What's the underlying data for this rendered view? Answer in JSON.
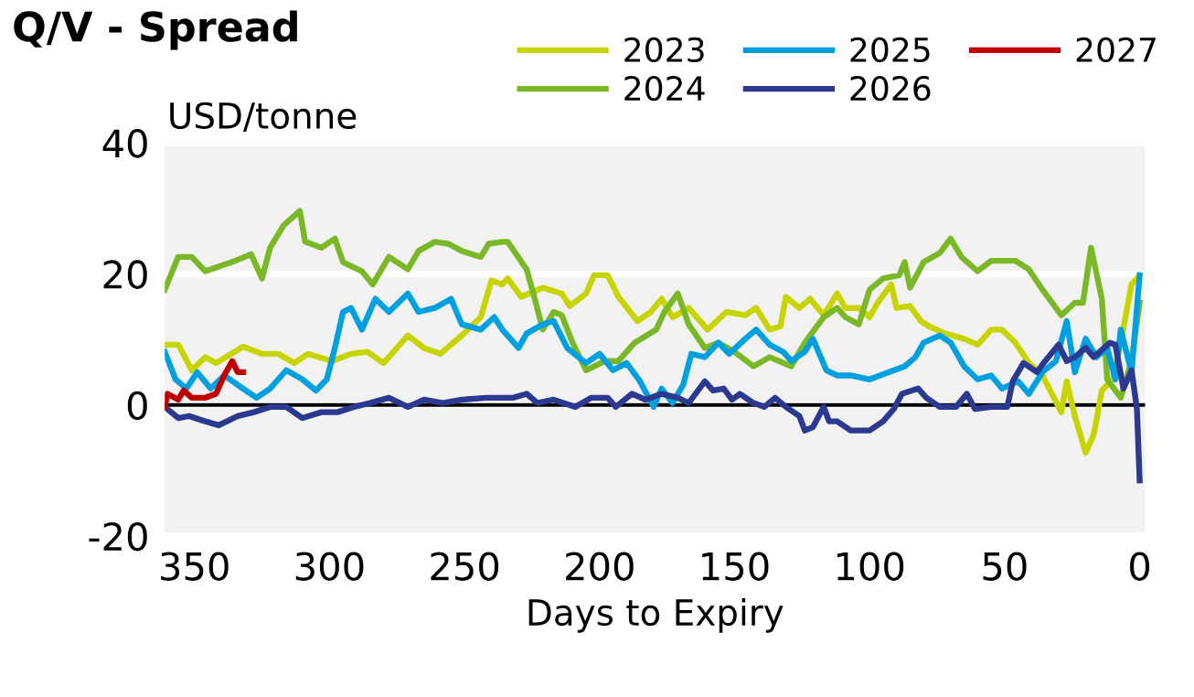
{
  "chart_data": {
    "type": "line",
    "title": "Q/V - Spread",
    "ylabel": "USD/tonne",
    "xlabel": "Days to Expiry",
    "xlim": [
      361,
      -2
    ],
    "xticks": [
      350,
      300,
      250,
      200,
      150,
      100,
      50,
      0
    ],
    "ylim": [
      -20,
      40
    ],
    "yticks": [
      -20,
      0,
      20,
      40
    ],
    "grid": "y",
    "legend": "top",
    "line_style": "solid",
    "marker": "none",
    "ref_lines": [
      {
        "axis": "y",
        "value": 0,
        "color": "#000000"
      }
    ],
    "series": [
      {
        "name": "2023",
        "color": "#c8d400",
        "x": [
          361,
          356,
          351,
          346,
          342,
          332,
          325,
          319,
          313,
          308,
          299,
          292,
          286,
          280,
          271,
          265,
          259,
          251,
          244,
          240,
          236,
          234,
          229,
          221,
          214,
          211,
          205,
          202,
          197,
          193,
          186,
          181,
          177,
          173,
          167,
          160,
          153,
          146,
          142,
          137,
          133,
          131,
          126,
          122,
          117,
          112,
          109,
          104,
          100,
          97,
          92,
          90,
          85,
          81,
          78,
          72,
          65,
          60,
          55,
          51,
          46,
          41,
          36,
          29,
          27,
          24,
          20,
          17,
          14,
          10,
          7,
          3,
          1
        ],
        "values": [
          9.2,
          9.2,
          5.3,
          7.3,
          6.4,
          8.9,
          7.8,
          7.8,
          6.4,
          7.8,
          6.7,
          7.8,
          8.1,
          6.4,
          10.6,
          8.7,
          7.8,
          10.6,
          13.4,
          19,
          18.4,
          19.3,
          16.5,
          17.9,
          17,
          15.1,
          17,
          19.8,
          19.8,
          16.5,
          12.8,
          14.2,
          16.2,
          13.4,
          14.8,
          11.5,
          14.2,
          13.7,
          14.8,
          11.5,
          12,
          16.5,
          14.8,
          16.2,
          13.7,
          17,
          14.8,
          14.8,
          13.4,
          15.6,
          18.4,
          14.8,
          15.1,
          12.8,
          12,
          10.9,
          10.1,
          9.2,
          11.5,
          11.5,
          9.5,
          6.4,
          4.5,
          -1.1,
          3.6,
          -1.7,
          -7.3,
          -4.5,
          2.2,
          3.9,
          9.5,
          18.4,
          19.3
        ]
      },
      {
        "name": "2024",
        "color": "#7ab828",
        "x": [
          361,
          356,
          351,
          346,
          335,
          329,
          325,
          322,
          317,
          311,
          309,
          303,
          298,
          295,
          288,
          284,
          278,
          271,
          267,
          261,
          256,
          251,
          244,
          241,
          236,
          234,
          227,
          224,
          221,
          217,
          214,
          210,
          205,
          198,
          193,
          187,
          179,
          176,
          171,
          167,
          161,
          156,
          150,
          143,
          137,
          129,
          124,
          117,
          112,
          109,
          104,
          100,
          95,
          89,
          87,
          85,
          80,
          74,
          70,
          66,
          60,
          55,
          46,
          41,
          36,
          29,
          24,
          21,
          18,
          14,
          12,
          7,
          3,
          0
        ],
        "values": [
          17.6,
          22.6,
          22.6,
          20.4,
          22,
          23,
          19.3,
          24,
          27.4,
          29.6,
          24.9,
          24,
          25.4,
          21.8,
          20.4,
          18.4,
          22.6,
          20.7,
          23.5,
          24.9,
          24.6,
          23.5,
          22.6,
          24.6,
          24.9,
          24.9,
          20.7,
          16.2,
          11.5,
          14.2,
          13.7,
          9.5,
          5.3,
          6.7,
          6.7,
          9.5,
          11.5,
          14.2,
          17,
          12.3,
          8.7,
          9.5,
          8.1,
          5.9,
          7.3,
          5.9,
          9.5,
          13.4,
          14.8,
          13.4,
          12.3,
          17.6,
          19.3,
          19.8,
          21.8,
          17.9,
          21.8,
          23.2,
          25.4,
          22.6,
          20.4,
          22,
          22,
          20.7,
          17.6,
          13.7,
          15.6,
          15.6,
          24,
          16.2,
          3.9,
          1.1,
          6.7,
          15.6
        ]
      },
      {
        "name": "2025",
        "color": "#00a0e0",
        "x": [
          361,
          357,
          353,
          349,
          344,
          339,
          332,
          327,
          322,
          316,
          310,
          305,
          301,
          298,
          295,
          292,
          288,
          283,
          278,
          271,
          267,
          261,
          255,
          251,
          244,
          239,
          236,
          230,
          227,
          221,
          217,
          212,
          205,
          200,
          195,
          190,
          185,
          180,
          177,
          173,
          169,
          166,
          161,
          156,
          152,
          146,
          142,
          137,
          132,
          129,
          124,
          121,
          116,
          112,
          107,
          100,
          93,
          87,
          83,
          80,
          74,
          70,
          65,
          60,
          55,
          51,
          45,
          41,
          36,
          31,
          27,
          24,
          20,
          16,
          12,
          9,
          7,
          3,
          0
        ],
        "values": [
          8.1,
          3.9,
          2.5,
          5,
          2.5,
          4.5,
          2.5,
          1.1,
          2.5,
          5.3,
          3.9,
          2.2,
          3.9,
          8.7,
          14.2,
          14.8,
          11.5,
          16.2,
          14.2,
          17,
          14.2,
          14.8,
          16.2,
          12.3,
          11.5,
          13.4,
          11.5,
          8.7,
          10.9,
          12.3,
          12.8,
          8.7,
          6.4,
          7.8,
          5.3,
          6.4,
          3.6,
          -0.3,
          2.5,
          0.3,
          3.1,
          7.8,
          7.3,
          9.5,
          7.8,
          10.1,
          11.5,
          9.2,
          8.1,
          6.7,
          8.1,
          10.1,
          5.3,
          4.5,
          4.5,
          3.9,
          5,
          5.9,
          7.3,
          9.5,
          10.6,
          9.5,
          5.9,
          3.9,
          4.5,
          2.5,
          3.6,
          1.7,
          5,
          6.7,
          12.8,
          5,
          10.1,
          7.3,
          8.7,
          3.9,
          11.5,
          5,
          19.8
        ]
      },
      {
        "name": "2026",
        "color": "#2b3990",
        "x": [
          361,
          356,
          352,
          346,
          341,
          334,
          328,
          322,
          316,
          310,
          303,
          297,
          291,
          285,
          278,
          271,
          265,
          258,
          251,
          242,
          236,
          232,
          227,
          223,
          217,
          209,
          203,
          197,
          194,
          188,
          183,
          177,
          171,
          167,
          161,
          158,
          154,
          151,
          148,
          143,
          139,
          135,
          131,
          126,
          124,
          121,
          117,
          115,
          112,
          107,
          100,
          95,
          91,
          88,
          82,
          79,
          74,
          68,
          64,
          61,
          55,
          49,
          47,
          43,
          38,
          35,
          30,
          27,
          24,
          20,
          17,
          11,
          9,
          6,
          3,
          1,
          0
        ],
        "values": [
          -0.3,
          -2,
          -1.7,
          -2.5,
          -3.1,
          -1.7,
          -1.1,
          -0.3,
          -0.3,
          -2,
          -1.1,
          -1.1,
          -0.3,
          0.3,
          1.1,
          -0.3,
          0.8,
          0.3,
          0.8,
          1.1,
          1.1,
          1.1,
          1.7,
          0.3,
          0.8,
          -0.3,
          1.1,
          1.1,
          -0.3,
          1.7,
          0.8,
          1.7,
          1.1,
          0.3,
          3.6,
          2.2,
          2.5,
          0.8,
          1.7,
          0.3,
          -0.3,
          1.1,
          -0.3,
          -1.7,
          -3.9,
          -3.4,
          -0.3,
          -2.5,
          -2.5,
          -3.9,
          -3.9,
          -2.5,
          -0.6,
          1.7,
          2.5,
          1.1,
          -0.3,
          -0.3,
          1.7,
          -0.6,
          -0.3,
          -0.3,
          3.6,
          6.4,
          5,
          6.7,
          9.2,
          6.7,
          7.3,
          8.7,
          7.3,
          9.5,
          9.2,
          2.5,
          5.3,
          -0.6,
          -11.5
        ]
      },
      {
        "name": "2027",
        "color": "#c00000",
        "x": [
          361,
          360,
          356,
          354,
          351,
          346,
          342,
          339,
          336,
          334,
          332
        ],
        "values": [
          -0.3,
          1.7,
          0.8,
          2.2,
          1.1,
          1.1,
          1.7,
          4.5,
          6.7,
          5,
          5
        ]
      }
    ]
  }
}
